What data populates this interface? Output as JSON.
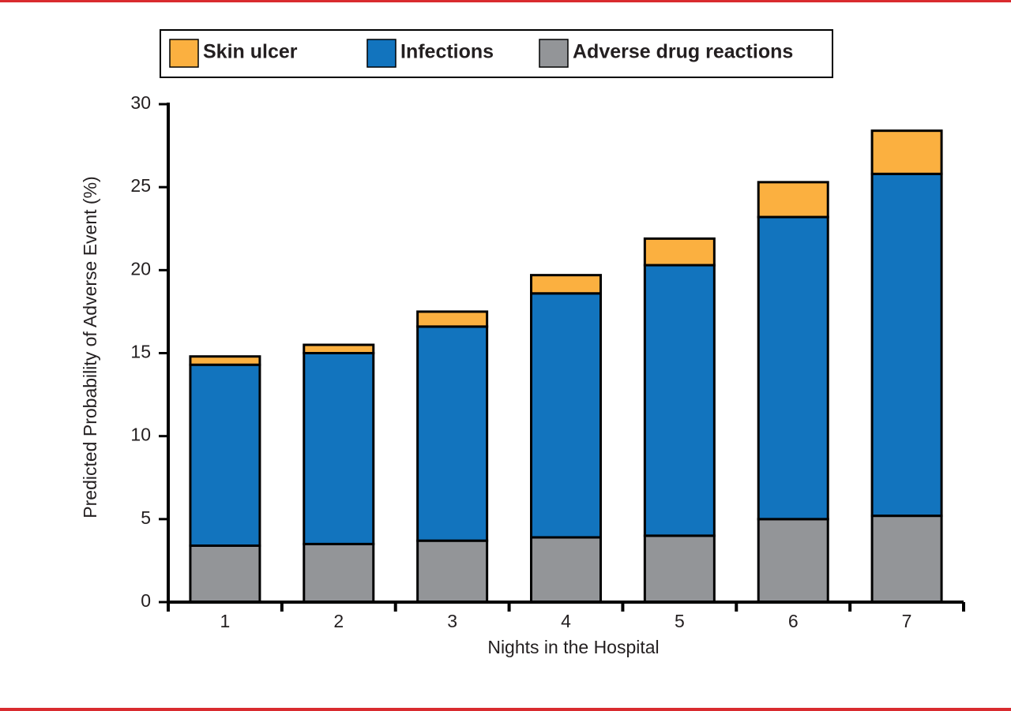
{
  "chart_data": {
    "type": "stacked-bar",
    "x_label": "Nights in the Hospital",
    "y_label": "Predicted Probability of Adverse Event (%)",
    "categories": [
      "1",
      "2",
      "3",
      "4",
      "5",
      "6",
      "7"
    ],
    "series": [
      {
        "name": "Skin ulcer",
        "color": "#fbb040",
        "values": [
          0.5,
          0.5,
          0.9,
          1.1,
          1.6,
          2.1,
          2.6
        ]
      },
      {
        "name": "Infections",
        "color": "#1274be",
        "values": [
          10.9,
          11.5,
          12.9,
          14.7,
          16.3,
          18.2,
          20.6
        ]
      },
      {
        "name": "Adverse drug reactions",
        "color": "#939598",
        "values": [
          3.4,
          3.5,
          3.7,
          3.9,
          4.0,
          5.0,
          5.2
        ]
      }
    ],
    "ylim": [
      0,
      30
    ],
    "yticks": [
      0,
      5,
      10,
      15,
      20,
      25,
      30
    ]
  }
}
